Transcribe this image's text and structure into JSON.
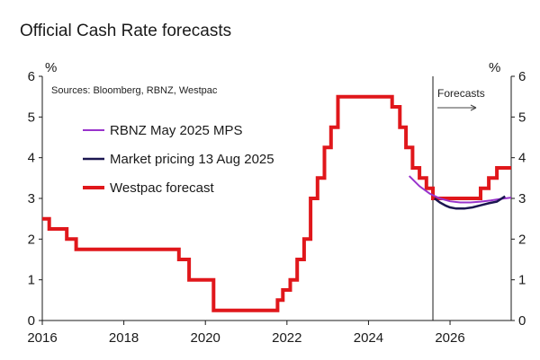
{
  "chart_data": {
    "type": "line",
    "title": "Official Cash Rate forecasts",
    "ylabel_left": "%",
    "ylabel_right": "%",
    "ylim": [
      0,
      6
    ],
    "xlim": [
      2016.0,
      2027.5
    ],
    "yticks": [
      "0",
      "1",
      "2",
      "3",
      "4",
      "5",
      "6"
    ],
    "xticks": [
      "2016",
      "2018",
      "2020",
      "2022",
      "2024",
      "2026"
    ],
    "source": "Sources: Bloomberg, RBNZ, Westpac",
    "forecast_label": "Forecasts",
    "forecast_start": 2025.58,
    "series": [
      {
        "name": "RBNZ May 2025 MPS",
        "color": "#9933cc",
        "x": [
          2025.0,
          2025.25,
          2025.5,
          2025.75,
          2026.0,
          2026.25,
          2026.5,
          2026.75,
          2027.0,
          2027.25,
          2027.5
        ],
        "y": [
          3.55,
          3.3,
          3.12,
          3.0,
          2.93,
          2.9,
          2.9,
          2.92,
          2.95,
          2.99,
          3.02
        ]
      },
      {
        "name": "Market pricing 13 Aug 2025",
        "color": "#1b1650",
        "x": [
          2025.62,
          2025.75,
          2025.9,
          2026.0,
          2026.15,
          2026.35,
          2026.55,
          2026.75,
          2026.95,
          2027.15,
          2027.35
        ],
        "y": [
          3.0,
          2.9,
          2.82,
          2.78,
          2.75,
          2.75,
          2.78,
          2.83,
          2.88,
          2.92,
          3.05
        ]
      },
      {
        "name": "Westpac forecast",
        "color": "#e0171b",
        "x": [
          2016.0,
          2016.17,
          2016.17,
          2016.6,
          2016.6,
          2016.83,
          2016.83,
          2019.35,
          2019.35,
          2019.6,
          2019.6,
          2020.2,
          2020.2,
          2021.77,
          2021.77,
          2021.9,
          2021.9,
          2022.08,
          2022.08,
          2022.25,
          2022.25,
          2022.42,
          2022.42,
          2022.58,
          2022.58,
          2022.75,
          2022.75,
          2022.92,
          2022.92,
          2023.08,
          2023.08,
          2023.25,
          2023.25,
          2024.58,
          2024.58,
          2024.77,
          2024.77,
          2024.92,
          2024.92,
          2025.08,
          2025.08,
          2025.25,
          2025.25,
          2025.42,
          2025.42,
          2025.58,
          2025.58,
          2026.75,
          2026.75,
          2026.95,
          2026.95,
          2027.15,
          2027.15,
          2027.3,
          2027.3,
          2027.5
        ],
        "y": [
          2.5,
          2.5,
          2.25,
          2.25,
          2.0,
          2.0,
          1.75,
          1.75,
          1.5,
          1.5,
          1.0,
          1.0,
          0.25,
          0.25,
          0.5,
          0.5,
          0.75,
          0.75,
          1.0,
          1.0,
          1.5,
          1.5,
          2.0,
          2.0,
          3.0,
          3.0,
          3.5,
          3.5,
          4.25,
          4.25,
          4.75,
          4.75,
          5.5,
          5.5,
          5.25,
          5.25,
          4.75,
          4.75,
          4.25,
          4.25,
          3.75,
          3.75,
          3.5,
          3.5,
          3.25,
          3.25,
          3.0,
          3.0,
          3.25,
          3.25,
          3.5,
          3.5,
          3.75,
          3.75,
          3.75,
          3.75
        ]
      }
    ]
  }
}
